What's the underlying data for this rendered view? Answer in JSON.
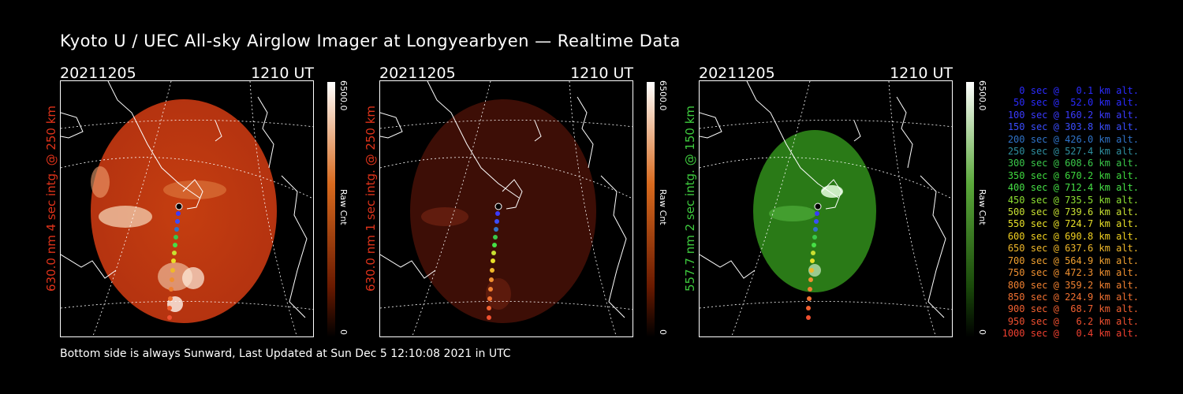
{
  "title": "Kyoto U / UEC All-sky Airglow Imager at Longyearbyen — Realtime Data",
  "footer": "Bottom side is always Sunward, Last Updated at Sun Dec  5 12:10:08 2021 in UTC",
  "panels": [
    {
      "date": "20211205",
      "time": "1210 UT",
      "ylabel": "630.0 nm 4 sec intg. @ 250 km",
      "label_color": "#e0331a",
      "colorbar_max": "6500.0",
      "colorbar_unit": "Raw Cnt",
      "colorbar_min": "0",
      "image_color": "#c0390d",
      "bar_top_color": "#ffffff",
      "bar_mid_color": "#d86a1e",
      "bar_bottom_color": "#000000"
    },
    {
      "date": "20211205",
      "time": "1210 UT",
      "ylabel": "630.0 nm 1 sec intg. @ 250 km",
      "label_color": "#e0331a",
      "colorbar_max": "6500.0",
      "colorbar_unit": "Raw Cnt",
      "colorbar_min": "0",
      "image_color": "#3d0e06",
      "bar_top_color": "#ffffff",
      "bar_mid_color": "#d86a1e",
      "bar_bottom_color": "#000000"
    },
    {
      "date": "20211205",
      "time": "1210 UT",
      "ylabel": "557.7 nm 2 sec intg. @ 150 km",
      "label_color": "#3ecb3e",
      "colorbar_max": "6500.0",
      "colorbar_unit": "Raw Cnt",
      "colorbar_min": "0",
      "image_color": "#2a7a17",
      "bar_top_color": "#ffffff",
      "bar_mid_color": "#5aa83a",
      "bar_bottom_color": "#000000"
    }
  ],
  "legend": [
    {
      "text": "0 sec @   0.1 km alt.",
      "color": "#2b2bff"
    },
    {
      "text": "50 sec @  52.0 km alt.",
      "color": "#2b2bff"
    },
    {
      "text": "100 sec @ 160.2 km alt.",
      "color": "#3a3aff"
    },
    {
      "text": "150 sec @ 303.8 km alt.",
      "color": "#3a4dff"
    },
    {
      "text": "200 sec @ 426.0 km alt.",
      "color": "#2f73c8"
    },
    {
      "text": "250 sec @ 527.4 km alt.",
      "color": "#2f8fa0"
    },
    {
      "text": "300 sec @ 608.6 km alt.",
      "color": "#3ac84a"
    },
    {
      "text": "350 sec @ 670.2 km alt.",
      "color": "#3ed83e"
    },
    {
      "text": "400 sec @ 712.4 km alt.",
      "color": "#46e046"
    },
    {
      "text": "450 sec @ 735.5 km alt.",
      "color": "#8ee032"
    },
    {
      "text": "500 sec @ 739.6 km alt.",
      "color": "#c8e032"
    },
    {
      "text": "550 sec @ 724.7 km alt.",
      "color": "#e8e028"
    },
    {
      "text": "600 sec @ 690.8 km alt.",
      "color": "#f0d020"
    },
    {
      "text": "650 sec @ 637.6 km alt.",
      "color": "#f0b82a"
    },
    {
      "text": "700 sec @ 564.9 km alt.",
      "color": "#f0a030"
    },
    {
      "text": "750 sec @ 472.3 km alt.",
      "color": "#f09030"
    },
    {
      "text": "800 sec @ 359.2 km alt.",
      "color": "#f08030"
    },
    {
      "text": "850 sec @ 224.9 km alt.",
      "color": "#f07030"
    },
    {
      "text": "900 sec @  68.7 km alt.",
      "color": "#f06030"
    },
    {
      "text": "950 sec @   6.2 km alt.",
      "color": "#f05030"
    },
    {
      "text": "1000 sec @   0.4 km alt.",
      "color": "#f04030"
    }
  ]
}
